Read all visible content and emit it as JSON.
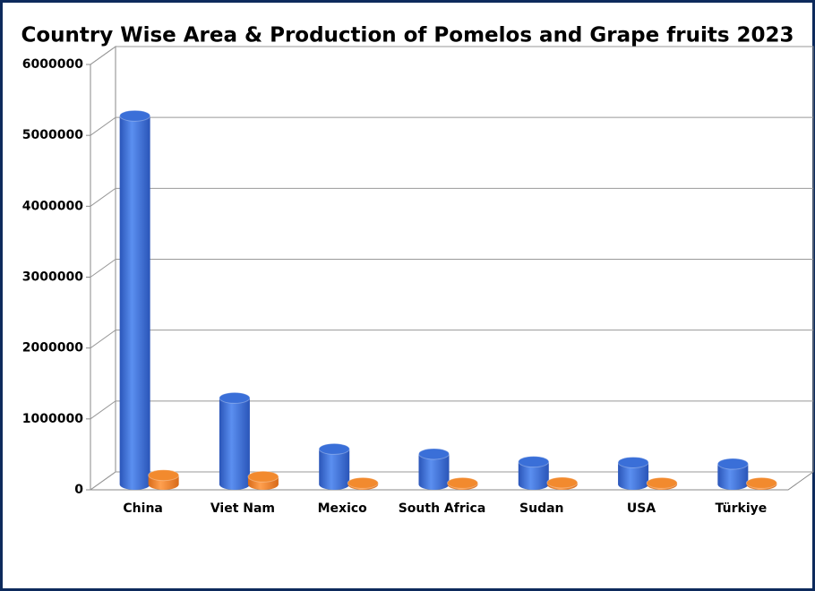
{
  "chart_data": {
    "type": "bar3d",
    "title": "Country Wise Area & Production of Pomelos and Grape fruits 2023",
    "categories": [
      "China",
      "Viet Nam",
      "Mexico",
      "South Africa",
      "Sudan",
      "USA",
      "Türkiye"
    ],
    "series": [
      {
        "color": "#3a6fd8",
        "values": [
          5200000,
          1220000,
          500000,
          430000,
          320000,
          310000,
          290000
        ]
      },
      {
        "color": "#f28a2e",
        "values": [
          130000,
          110000,
          20000,
          20000,
          25000,
          20000,
          20000
        ]
      }
    ],
    "ylim": [
      0,
      6000000
    ],
    "yticks": [
      0,
      1000000,
      2000000,
      3000000,
      4000000,
      5000000,
      6000000
    ],
    "grid": true
  }
}
